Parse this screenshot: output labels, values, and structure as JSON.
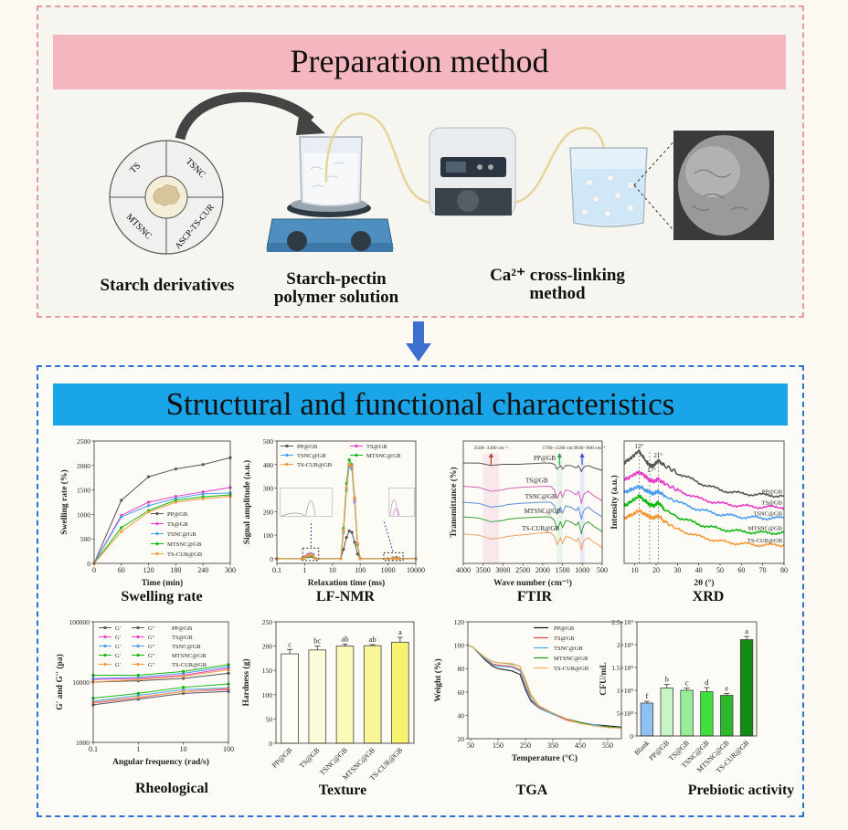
{
  "preparation": {
    "title": "Preparation method",
    "wheel_labels": [
      "TS",
      "TSNC",
      "MTSNC",
      "ASCP-TS-CUR"
    ],
    "steps": [
      {
        "line1": "Starch derivatives",
        "line2": ""
      },
      {
        "line1": "Starch-pectin",
        "line2": "polymer solution"
      },
      {
        "line1": "Ca²⁺ cross-linking",
        "line2": "method"
      }
    ]
  },
  "characteristics": {
    "title": "Structural and functional characteristics"
  },
  "colors": {
    "prep_border": "#e39aa3",
    "prep_header": "#f4b6bf",
    "struct_border": "#2f6fd8",
    "struct_header": "#1aa5e9",
    "arrow": "#3d6fd0"
  },
  "chart_data": [
    {
      "caption": "Swelling rate",
      "type": "line",
      "markers": true,
      "xlabel": "Time (min)",
      "ylabel": "Swelling rate (%)",
      "xlim": [
        0,
        300
      ],
      "ylim": [
        0,
        2500
      ],
      "xticks": [
        0,
        60,
        120,
        180,
        240,
        300
      ],
      "yticks": [
        0,
        500,
        1000,
        1500,
        2000,
        2500
      ],
      "legend": "bottom-right",
      "x": [
        0,
        60,
        120,
        180,
        240,
        300
      ],
      "series": [
        {
          "name": "PP@GB",
          "color": "#555555",
          "y": [
            0,
            1290,
            1770,
            1930,
            2020,
            2160
          ]
        },
        {
          "name": "TS@GB",
          "color": "#e83ec8",
          "y": [
            0,
            980,
            1250,
            1370,
            1460,
            1550
          ]
        },
        {
          "name": "TSNC@GB",
          "color": "#4a9ef0",
          "y": [
            0,
            950,
            1180,
            1330,
            1420,
            1440
          ]
        },
        {
          "name": "MTSNC@GB",
          "color": "#12b812",
          "y": [
            0,
            730,
            1080,
            1290,
            1360,
            1400
          ]
        },
        {
          "name": "TS-CUR@GB",
          "color": "#f59a3a",
          "y": [
            0,
            650,
            1050,
            1250,
            1320,
            1370
          ]
        }
      ]
    },
    {
      "caption": "LF-NMR",
      "type": "line",
      "markers": true,
      "xscale": "log",
      "xlabel": "Relaxation time (ms)",
      "ylabel": "Signal amplitude (a.u.)",
      "xlim": [
        0.1,
        10000
      ],
      "ylim": [
        -20,
        500
      ],
      "xticks": [
        0.1,
        1,
        10,
        100,
        1000,
        10000
      ],
      "yticks": [
        0,
        100,
        200,
        300,
        400,
        500
      ],
      "legend": "top",
      "x": [
        0.1,
        0.8,
        1,
        1.3,
        1.6,
        2,
        2.5,
        20,
        25,
        32,
        40,
        50,
        63,
        80,
        100,
        1000,
        1500,
        2000,
        2500,
        10000
      ],
      "series": [
        {
          "name": "PP@GB",
          "color": "#555555",
          "y": [
            0,
            0,
            3,
            8,
            10,
            8,
            0,
            0,
            40,
            90,
            118,
            112,
            70,
            20,
            0,
            0,
            3,
            5,
            2,
            0
          ]
        },
        {
          "name": "TS@GB",
          "color": "#e83ec8",
          "y": [
            0,
            0,
            8,
            18,
            22,
            18,
            0,
            0,
            120,
            300,
            400,
            390,
            250,
            60,
            0,
            0,
            1,
            2,
            1,
            0
          ]
        },
        {
          "name": "TSNC@GB",
          "color": "#4a9ef0",
          "y": [
            0,
            0,
            5,
            15,
            20,
            15,
            0,
            0,
            110,
            290,
            390,
            380,
            240,
            60,
            0,
            0,
            1,
            2,
            1,
            0
          ]
        },
        {
          "name": "MTSNC@GB",
          "color": "#12b812",
          "y": [
            0,
            0,
            3,
            10,
            15,
            10,
            0,
            0,
            130,
            320,
            420,
            400,
            260,
            60,
            0,
            0,
            0,
            1,
            0,
            0
          ]
        },
        {
          "name": "TS-CUR@GB",
          "color": "#f59a3a",
          "y": [
            0,
            0,
            4,
            12,
            16,
            12,
            0,
            0,
            120,
            300,
            400,
            395,
            260,
            65,
            0,
            0,
            0,
            1,
            0,
            0
          ]
        }
      ]
    },
    {
      "caption": "FTIR",
      "type": "line",
      "xlabel": "Wave number (cm⁻¹)",
      "ylabel": "Transmittance (%)",
      "xlim": [
        4000,
        500
      ],
      "ylim": [
        0,
        100
      ],
      "xticks": [
        4000,
        3500,
        3000,
        2500,
        2000,
        1500,
        1000,
        500
      ],
      "yticks": [],
      "legend": "inline",
      "annotations": [
        {
          "text": "3500−3300 cm⁻¹",
          "color": "#c0392b",
          "band": [
            3500,
            3100
          ]
        },
        {
          "text": "1700−1500 cm⁻¹",
          "color": "#2e9e3e",
          "band": [
            1650,
            1500
          ]
        },
        {
          "text": "1100−900 cm⁻¹",
          "color": "#3b4fd0",
          "band": [
            1060,
            950
          ]
        }
      ],
      "x": [
        4000,
        3600,
        3300,
        3000,
        2900,
        2600,
        2000,
        1800,
        1700,
        1640,
        1550,
        1500,
        1420,
        1300,
        1150,
        1100,
        1020,
        1000,
        950,
        850,
        700,
        500
      ],
      "series": [
        {
          "name": "PP@GB",
          "color": "#555555",
          "y": [
            82,
            82,
            80,
            81,
            81,
            81,
            82,
            82,
            81,
            77,
            80,
            77,
            80,
            80,
            78,
            80,
            75,
            77,
            79,
            80,
            78,
            76
          ]
        },
        {
          "name": "TS@GB",
          "color": "#d860b8",
          "y": [
            63,
            62,
            59,
            60,
            61,
            62,
            63,
            63,
            60,
            53,
            59,
            54,
            60,
            59,
            56,
            59,
            49,
            53,
            57,
            59,
            55,
            51
          ]
        },
        {
          "name": "TSNC@GB",
          "color": "#5a8fd8",
          "y": [
            50,
            49,
            46,
            47,
            48,
            49,
            50,
            50,
            47,
            40,
            46,
            41,
            47,
            46,
            43,
            46,
            36,
            40,
            44,
            46,
            42,
            38
          ]
        },
        {
          "name": "MTSNC@GB",
          "color": "#3aa03a",
          "y": [
            38,
            37,
            34,
            35,
            36,
            37,
            38,
            38,
            35,
            28,
            34,
            29,
            35,
            34,
            31,
            34,
            24,
            28,
            32,
            34,
            30,
            26
          ]
        },
        {
          "name": "TS-CUR@GB",
          "color": "#f0a060",
          "y": [
            24,
            23,
            20,
            21,
            22,
            23,
            25,
            25,
            22,
            15,
            21,
            16,
            22,
            21,
            18,
            21,
            11,
            15,
            19,
            21,
            17,
            13
          ]
        }
      ]
    },
    {
      "caption": "XRD",
      "type": "line",
      "xlabel": "2θ (°)",
      "ylabel": "Intensity (a.u.)",
      "xlim": [
        5,
        80
      ],
      "ylim": [
        0,
        100
      ],
      "xticks": [
        10,
        20,
        30,
        40,
        50,
        60,
        70,
        80
      ],
      "yticks": [],
      "legend": "inline",
      "annotations": [
        {
          "text": "12°",
          "x": 12
        },
        {
          "text": "17°",
          "x": 17
        },
        {
          "text": "21°",
          "x": 21
        }
      ],
      "x": [
        5,
        8,
        12,
        15,
        17,
        19,
        21,
        24,
        30,
        40,
        50,
        60,
        70,
        80
      ],
      "series": [
        {
          "name": "PP@GB",
          "color": "#555555",
          "y": [
            82,
            86,
            92,
            84,
            80,
            80,
            84,
            80,
            74,
            66,
            60,
            57,
            56,
            55
          ]
        },
        {
          "name": "TS@GB",
          "color": "#e83ec8",
          "y": [
            68,
            71,
            75,
            71,
            68,
            67,
            69,
            65,
            60,
            53,
            49,
            47,
            46,
            46
          ]
        },
        {
          "name": "TSNC@GB",
          "color": "#4a9ef0",
          "y": [
            58,
            60,
            63,
            60,
            58,
            57,
            59,
            55,
            50,
            44,
            40,
            38,
            37,
            37
          ]
        },
        {
          "name": "MTSNC@GB",
          "color": "#12b812",
          "y": [
            47,
            50,
            55,
            51,
            48,
            47,
            50,
            44,
            38,
            32,
            28,
            26,
            25,
            25
          ]
        },
        {
          "name": "TS-CUR@GB",
          "color": "#f59a3a",
          "y": [
            37,
            39,
            43,
            40,
            38,
            37,
            39,
            34,
            28,
            22,
            18,
            16,
            15,
            15
          ]
        }
      ]
    },
    {
      "caption": "Rheological",
      "type": "line",
      "markers": true,
      "xscale": "log",
      "yscale": "log",
      "xlabel": "Angular  frequency (rad/s)",
      "ylabel": "G' and G'' (pa)",
      "xlim": [
        0.1,
        100
      ],
      "ylim": [
        1000,
        100000
      ],
      "xticks": [
        0.1,
        1,
        10,
        100
      ],
      "yticks": [
        1000,
        10000,
        100000
      ],
      "legend": "top-left",
      "x": [
        0.1,
        1,
        10,
        100
      ],
      "series": [
        {
          "name": "PP@GB",
          "modulus": "G'",
          "color": "#555555",
          "y": [
            10000,
            10500,
            11500,
            14000
          ]
        },
        {
          "name": "PP@GB",
          "modulus": "G''",
          "color": "#555555",
          "y": [
            4200,
            5200,
            6500,
            7000
          ]
        },
        {
          "name": "TS@GB",
          "modulus": "G'",
          "color": "#e83ec8",
          "y": [
            11000,
            11500,
            13000,
            17000
          ]
        },
        {
          "name": "TS@GB",
          "modulus": "G''",
          "color": "#e83ec8",
          "y": [
            4500,
            5500,
            7000,
            7500
          ]
        },
        {
          "name": "TSNC@GB",
          "modulus": "G'",
          "color": "#4a9ef0",
          "y": [
            11500,
            12000,
            14000,
            18000
          ]
        },
        {
          "name": "TSNC@GB",
          "modulus": "G''",
          "color": "#4a9ef0",
          "y": [
            4800,
            6000,
            7500,
            8000
          ]
        },
        {
          "name": "MTSNC@GB",
          "modulus": "G'",
          "color": "#12b812",
          "y": [
            13000,
            13000,
            15000,
            19500
          ]
        },
        {
          "name": "MTSNC@GB",
          "modulus": "G''",
          "color": "#12b812",
          "y": [
            5400,
            6500,
            8200,
            9300
          ]
        },
        {
          "name": "TS-CUR@GB",
          "modulus": "G'",
          "color": "#f59a3a",
          "y": [
            10000,
            11000,
            12500,
            16000
          ]
        },
        {
          "name": "TS-CUR@GB",
          "modulus": "G''",
          "color": "#f59a3a",
          "y": [
            4600,
            5600,
            7000,
            7800
          ]
        }
      ]
    },
    {
      "caption": "Texture",
      "type": "bar",
      "xlabel": "",
      "ylabel": "Hardness (g)",
      "ylim": [
        0,
        250
      ],
      "yticks": [
        0,
        50,
        100,
        150,
        200,
        250
      ],
      "categories": [
        "PP@GB",
        "TS@GB",
        "TSNC@GB",
        "MTSNC@GB",
        "TS-CUR@GB"
      ],
      "values": [
        184,
        192,
        200,
        201,
        208
      ],
      "errors": [
        9,
        8,
        4,
        2,
        10
      ],
      "letters": [
        "c",
        "bc",
        "ab",
        "ab",
        "a"
      ],
      "colors": [
        "#fffef5",
        "#fdfcd8",
        "#fbf9b8",
        "#f9f69a",
        "#f7f270"
      ]
    },
    {
      "caption": "TGA",
      "type": "line",
      "xlabel": "Temperature (°C)",
      "ylabel": "Weight (%)",
      "xlim": [
        40,
        600
      ],
      "ylim": [
        20,
        120
      ],
      "xticks": [
        50,
        150,
        250,
        350,
        450,
        550
      ],
      "yticks": [
        20,
        40,
        60,
        80,
        100,
        120
      ],
      "legend": "top-right",
      "x": [
        40,
        60,
        100,
        130,
        150,
        200,
        230,
        250,
        270,
        300,
        350,
        400,
        450,
        500,
        550,
        600
      ],
      "series": [
        {
          "name": "PP@GB",
          "color": "#111111",
          "y": [
            100,
            98,
            88,
            82,
            80,
            78,
            75,
            62,
            52,
            46,
            41,
            37,
            34,
            32,
            31,
            30
          ]
        },
        {
          "name": "TS@GB",
          "color": "#e84040",
          "y": [
            100,
            98,
            89,
            84,
            83,
            82,
            79,
            66,
            54,
            47,
            41,
            36,
            33,
            31,
            30,
            29
          ]
        },
        {
          "name": "TSNC@GB",
          "color": "#4aaeea",
          "y": [
            100,
            98,
            89,
            83,
            82,
            81,
            78,
            64,
            53,
            46,
            41,
            37,
            34,
            32,
            30,
            29.5
          ]
        },
        {
          "name": "MTSNC@GB",
          "color": "#1a9a1a",
          "y": [
            100,
            98,
            90,
            86,
            85,
            84,
            82,
            70,
            57,
            48,
            42,
            37,
            34,
            31,
            30,
            29.5
          ]
        },
        {
          "name": "TS-CUR@GB",
          "color": "#f5b060",
          "y": [
            100,
            98,
            90,
            86,
            85,
            84.5,
            82,
            71,
            58,
            48,
            42,
            37,
            33,
            31,
            29.5,
            29
          ]
        }
      ]
    },
    {
      "caption": "Prebiotic activity",
      "type": "bar",
      "xlabel": "",
      "ylabel": "CFU/mL",
      "ylim": [
        0,
        2500000000
      ],
      "yticks": [
        0,
        500000000,
        1000000000,
        1500000000,
        2000000000,
        2500000000
      ],
      "ytick_labels": [
        "0",
        "5×10⁸",
        "1×10⁹",
        "1.5×10⁹",
        "2×10⁹",
        "2.5×10⁹"
      ],
      "categories": [
        "Blank",
        "PP@GB",
        "TS@GB",
        "TSNC@GB",
        "MTSNC@GB",
        "TS-CUR@GB"
      ],
      "values": [
        720000000,
        1050000000,
        1000000000,
        970000000,
        890000000,
        2110000000
      ],
      "errors": [
        40000000,
        80000000,
        50000000,
        90000000,
        40000000,
        70000000
      ],
      "letters": [
        "f",
        "b",
        "c",
        "d",
        "e",
        "a"
      ],
      "colors": [
        "#8fc0f2",
        "#c8f5c8",
        "#98ee98",
        "#3ee03e",
        "#2cb82c",
        "#138a13"
      ]
    }
  ]
}
